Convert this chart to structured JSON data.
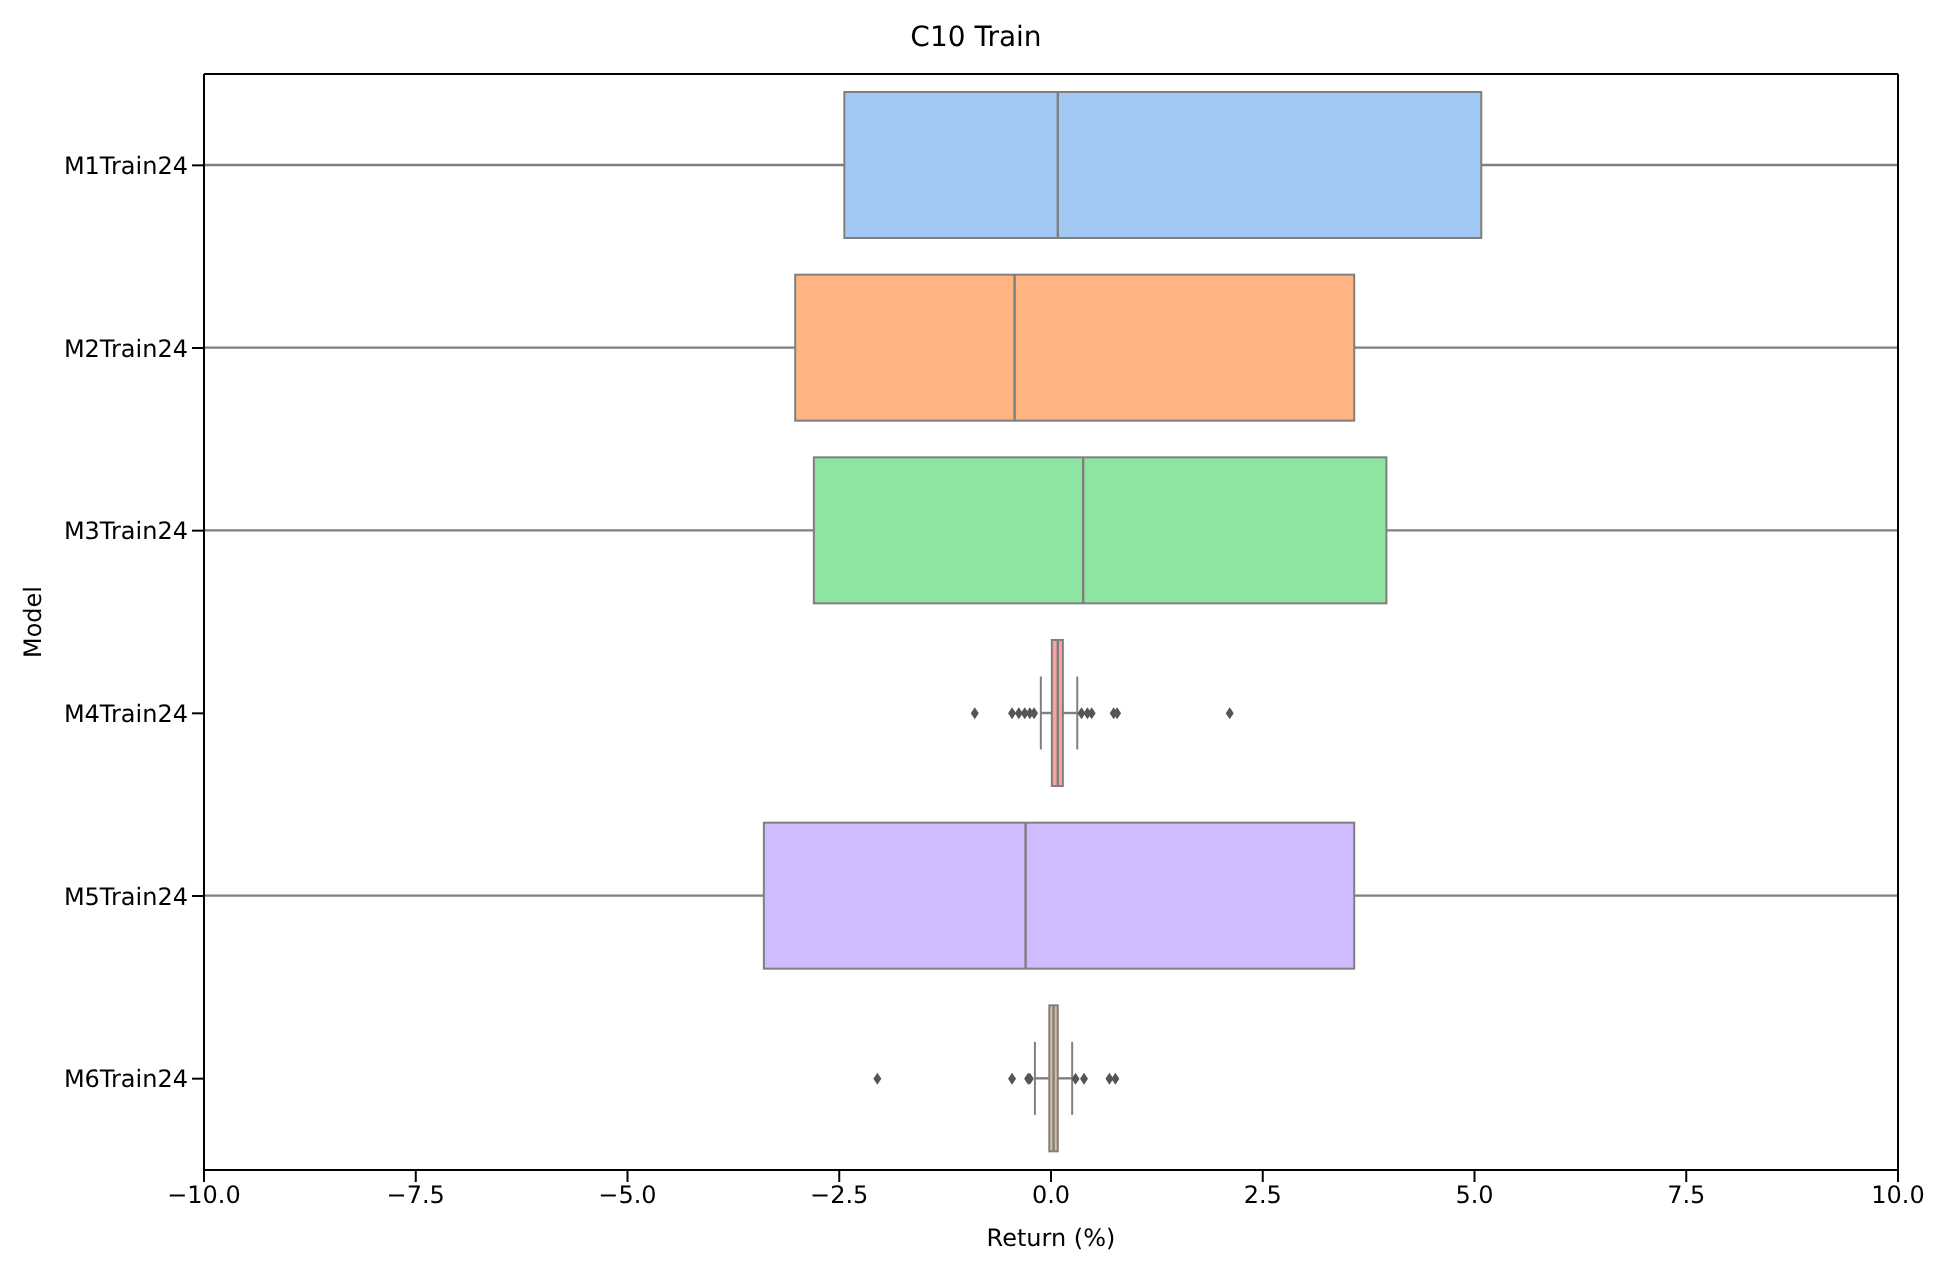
{
  "chart_data": {
    "type": "box",
    "title": "C10 Train",
    "xlabel": "Return (%)",
    "ylabel": "Model",
    "orientation": "horizontal",
    "categories": [
      "M1Train24",
      "M2Train24",
      "M3Train24",
      "M4Train24",
      "M5Train24",
      "M6Train24"
    ],
    "colors": [
      "#a1c9f4",
      "#ffb482",
      "#8de5a1",
      "#ff9f9b",
      "#d0bbff",
      "#debb9b"
    ],
    "boxes": [
      {
        "low": -10,
        "q1": -2.44,
        "median": 0.08,
        "q3": 5.08,
        "high": 10
      },
      {
        "low": -10,
        "q1": -3.02,
        "median": -0.43,
        "q3": 3.58,
        "high": 10
      },
      {
        "low": -10,
        "q1": -2.8,
        "median": 0.38,
        "q3": 3.96,
        "high": 10
      },
      {
        "low": -0.12,
        "q1": 0.01,
        "median": 0.08,
        "q3": 0.14,
        "high": 0.31,
        "outliers": [
          -0.9,
          -0.46,
          -0.38,
          -0.31,
          -0.25,
          -0.2,
          0.36,
          0.43,
          0.48,
          0.74,
          0.78,
          2.11
        ]
      },
      {
        "low": -10,
        "q1": -3.39,
        "median": -0.3,
        "q3": 3.58,
        "high": 10
      },
      {
        "low": -0.19,
        "q1": -0.02,
        "median": 0.03,
        "q3": 0.08,
        "high": 0.25,
        "outliers": [
          -2.05,
          -0.46,
          -0.27,
          -0.25,
          0.29,
          0.39,
          0.69,
          0.76
        ]
      }
    ],
    "xlim": [
      -10,
      10
    ],
    "xticks": [
      {
        "value": -10,
        "label": "−10.0"
      },
      {
        "value": -7.5,
        "label": "−7.5"
      },
      {
        "value": -5,
        "label": "−5.0"
      },
      {
        "value": -2.5,
        "label": "−2.5"
      },
      {
        "value": 0,
        "label": "0.0"
      },
      {
        "value": 2.5,
        "label": "2.5"
      },
      {
        "value": 5,
        "label": "5.0"
      },
      {
        "value": 7.5,
        "label": "7.5"
      },
      {
        "value": 10,
        "label": "10.0"
      }
    ],
    "grid": false
  }
}
